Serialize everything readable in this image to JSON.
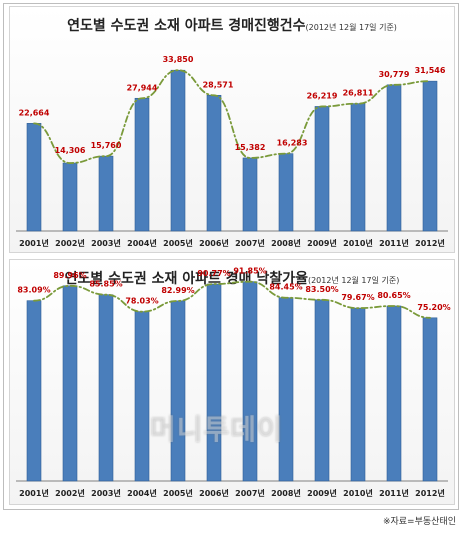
{
  "source": "※자료=부동산태인",
  "watermark": "머니투데이",
  "chart_data": [
    {
      "type": "bar",
      "title": "연도별 수도권 소재 아파트 경매진행건수",
      "subtitle": "(2012년 12월 17일 기준)",
      "categories": [
        "2001년",
        "2002년",
        "2003년",
        "2004년",
        "2005년",
        "2006년",
        "2007년",
        "2008년",
        "2009년",
        "2010년",
        "2011년",
        "2012년"
      ],
      "values": [
        22664,
        14306,
        15760,
        27944,
        33850,
        28571,
        15382,
        16283,
        26219,
        26811,
        30779,
        31546
      ],
      "value_labels": [
        "22,664",
        "14,306",
        "15,760",
        "27,944",
        "33,850",
        "28,571",
        "15,382",
        "16,283",
        "26,219",
        "26,811",
        "30,779",
        "31,546"
      ],
      "ylim": [
        0,
        40000
      ],
      "grid": false,
      "trendline": true,
      "colors": {
        "bar": "#4a7ebb",
        "label": "#c00000",
        "trend": "#7a9a3a"
      }
    },
    {
      "type": "bar",
      "title": "연도별 수도권 소재 아파트 경매 낙찰가율",
      "subtitle": "(2012년 12월 17일 기준)",
      "categories": [
        "2001년",
        "2002년",
        "2003년",
        "2004년",
        "2005년",
        "2006년",
        "2007년",
        "2008년",
        "2009년",
        "2010년",
        "2011년",
        "2012년"
      ],
      "values": [
        83.09,
        89.96,
        85.85,
        78.03,
        82.99,
        90.77,
        91.85,
        84.45,
        83.5,
        79.67,
        80.65,
        75.2
      ],
      "value_labels": [
        "83.09%",
        "89.96%",
        "85.85%",
        "78.03%",
        "82.99%",
        "90.77%",
        "91.85%",
        "84.45%",
        "83.50%",
        "79.67%",
        "80.65%",
        "75.20%"
      ],
      "ylim": [
        0,
        100
      ],
      "grid": false,
      "trendline": true,
      "colors": {
        "bar": "#4a7ebb",
        "label": "#c00000",
        "trend": "#7a9a3a"
      }
    }
  ]
}
